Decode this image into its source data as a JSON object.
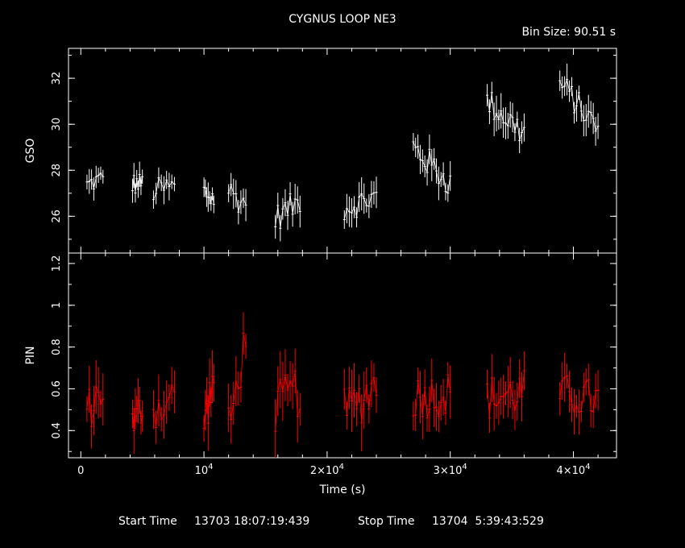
{
  "chart_data": [
    {
      "type": "line",
      "title": "CYGNUS LOOP NE3",
      "subtitle": "Bin Size: 90.51 s",
      "ylabel": "GSO",
      "xlim": [
        -1000,
        43500
      ],
      "ylim": [
        24.4,
        33.3
      ],
      "yticks": [
        26,
        28,
        30,
        32
      ],
      "color": "#ffffff",
      "segments": [
        {
          "x0": 500,
          "x1": 1800,
          "mean": 27.5,
          "slope": 0.3,
          "spread": 0.9
        },
        {
          "x0": 4200,
          "x1": 5000,
          "mean": 27.4,
          "slope": 0,
          "spread": 1.0
        },
        {
          "x0": 5900,
          "x1": 7600,
          "mean": 27.2,
          "slope": 0.2,
          "spread": 1.1
        },
        {
          "x0": 10000,
          "x1": 10800,
          "mean": 26.9,
          "slope": -0.3,
          "spread": 1.1
        },
        {
          "x0": 12000,
          "x1": 13400,
          "mean": 26.8,
          "slope": -0.6,
          "spread": 1.2
        },
        {
          "x0": 15800,
          "x1": 17800,
          "mean": 26.3,
          "slope": 0.8,
          "spread": 1.2
        },
        {
          "x0": 21400,
          "x1": 24000,
          "mean": 26.6,
          "slope": 0.5,
          "spread": 1.2
        },
        {
          "x0": 27000,
          "x1": 30000,
          "mean": 28.2,
          "slope": -1.6,
          "spread": 1.3
        },
        {
          "x0": 33000,
          "x1": 36000,
          "mean": 30.3,
          "slope": -1.4,
          "spread": 1.3
        },
        {
          "x0": 38900,
          "x1": 42000,
          "mean": 30.8,
          "slope": -2.0,
          "spread": 1.2
        }
      ]
    },
    {
      "type": "line",
      "ylabel": "PIN",
      "xlabel": "Time (s)",
      "xlim": [
        -1000,
        43500
      ],
      "ylim": [
        0.27,
        1.25
      ],
      "yticks": [
        0.4,
        0.6,
        0.8,
        1,
        1.2
      ],
      "xticks": [
        0,
        10000,
        20000,
        30000,
        40000
      ],
      "xtick_labels": [
        {
          "mant": "0",
          "exp": ""
        },
        {
          "mant": "10",
          "exp": "4"
        },
        {
          "mant": "2×10",
          "exp": "4"
        },
        {
          "mant": "3×10",
          "exp": "4"
        },
        {
          "mant": "4×10",
          "exp": "4"
        }
      ],
      "color": "#ff0000",
      "segments": [
        {
          "x0": 500,
          "x1": 1800,
          "mean": 0.55,
          "slope": 0.12,
          "spread": 0.22
        },
        {
          "x0": 4200,
          "x1": 5000,
          "mean": 0.47,
          "slope": 0.1,
          "spread": 0.2
        },
        {
          "x0": 5900,
          "x1": 7600,
          "mean": 0.53,
          "slope": 0.05,
          "spread": 0.22
        },
        {
          "x0": 10000,
          "x1": 10800,
          "mean": 0.55,
          "slope": 0.2,
          "spread": 0.22
        },
        {
          "x0": 12000,
          "x1": 13400,
          "mean": 0.62,
          "slope": 0.45,
          "spread": 0.24
        },
        {
          "x0": 15800,
          "x1": 17800,
          "mean": 0.55,
          "slope": 0.1,
          "spread": 0.26
        },
        {
          "x0": 21400,
          "x1": 24000,
          "mean": 0.55,
          "slope": 0.15,
          "spread": 0.25
        },
        {
          "x0": 27000,
          "x1": 30000,
          "mean": 0.57,
          "slope": 0.02,
          "spread": 0.22
        },
        {
          "x0": 33000,
          "x1": 36000,
          "mean": 0.57,
          "slope": 0.03,
          "spread": 0.22
        },
        {
          "x0": 38900,
          "x1": 42000,
          "mean": 0.56,
          "slope": -0.03,
          "spread": 0.2
        }
      ]
    }
  ],
  "footer": {
    "start_label": "Start Time",
    "start_value": "13703 18:07:19:439",
    "stop_label": "Stop Time",
    "stop_value": "13704  5:39:43:529"
  }
}
